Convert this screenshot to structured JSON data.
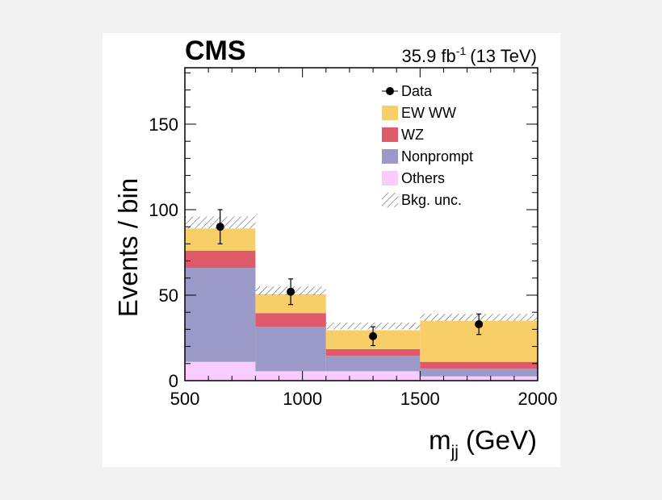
{
  "chart_data": {
    "type": "bar",
    "subtype": "stacked-histogram",
    "header": {
      "experiment": "CMS",
      "lumi_value": "35.9 fb",
      "lumi_exp": "-1",
      "energy": "(13 TeV)"
    },
    "ylabel": "Events / bin",
    "xlabel_main": "m",
    "xlabel_sub": "jj",
    "xlabel_unit": "(GeV)",
    "xlim": [
      500,
      2000
    ],
    "ylim": [
      0,
      183
    ],
    "x_ticks": [
      500,
      1000,
      1500,
      2000
    ],
    "y_ticks": [
      0,
      50,
      100,
      150
    ],
    "bin_edges": [
      500,
      800,
      1100,
      1500,
      2000
    ],
    "stack_order": [
      "Others",
      "Nonprompt",
      "WZ",
      "EW WW"
    ],
    "series": [
      {
        "name": "Others",
        "color": "#f9ccff",
        "values": [
          11,
          5.5,
          5.5,
          2.5
        ]
      },
      {
        "name": "Nonprompt",
        "color": "#9b99c8",
        "values": [
          55,
          26,
          9,
          4.5
        ]
      },
      {
        "name": "WZ",
        "color": "#de5a6a",
        "values": [
          10,
          8,
          4,
          4
        ]
      },
      {
        "name": "EW WW",
        "color": "#f8ce68",
        "values": [
          13,
          11,
          11,
          24
        ]
      }
    ],
    "bkg_unc_band": {
      "name": "Bkg. unc.",
      "upper": [
        96,
        55,
        34,
        39
      ],
      "lower": [
        89,
        50,
        30,
        35
      ]
    },
    "data_points": {
      "name": "Data",
      "x": [
        650,
        950,
        1300,
        1750
      ],
      "y": [
        90,
        52,
        26,
        33
      ],
      "err": [
        10,
        7.5,
        5.5,
        6
      ]
    },
    "legend": [
      {
        "label": "Data",
        "kind": "marker"
      },
      {
        "label": "EW WW",
        "kind": "fill",
        "color": "#f8ce68"
      },
      {
        "label": "WZ",
        "kind": "fill",
        "color": "#de5a6a"
      },
      {
        "label": "Nonprompt",
        "kind": "fill",
        "color": "#9b99c8"
      },
      {
        "label": "Others",
        "kind": "fill",
        "color": "#f9ccff"
      },
      {
        "label": "Bkg. unc.",
        "kind": "hatch"
      }
    ],
    "legend_position": "top-right",
    "grid": false
  }
}
